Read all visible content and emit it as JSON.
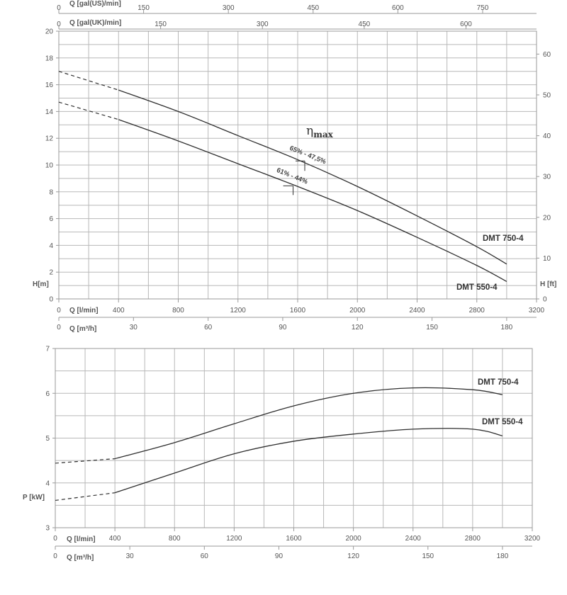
{
  "chart_data": [
    {
      "type": "line",
      "name_hint": "head",
      "series_labels": [
        "DMT 750-4",
        "DMT 550-4"
      ],
      "x_axis_bottom": {
        "label": "Q [l/min]",
        "range": [
          0,
          3200
        ],
        "ticks": [
          0,
          400,
          800,
          1200,
          1600,
          2000,
          2400,
          2800,
          3200
        ],
        "minor_step": 200
      },
      "x_axis_bottom2": {
        "label": "Q [m³/h]",
        "range": [
          0,
          192
        ],
        "ticks": [
          0,
          30,
          60,
          90,
          120,
          150,
          180
        ]
      },
      "x_axis_top1": {
        "label": "Q [gal(US)/min]",
        "range": [
          0,
          845.35
        ],
        "ticks": [
          0,
          150,
          300,
          450,
          600,
          750
        ]
      },
      "x_axis_top2": {
        "label": "Q [gal(UK)/min]",
        "range": [
          0,
          703.9
        ],
        "ticks": [
          0,
          150,
          300,
          450,
          600
        ]
      },
      "y_axis_left": {
        "label": "H[m]",
        "range": [
          0,
          20
        ],
        "ticks": [
          0,
          2,
          4,
          6,
          8,
          10,
          12,
          14,
          16,
          18,
          20
        ]
      },
      "y_axis_right": {
        "label": "H [ft]",
        "range": [
          0,
          65.62
        ],
        "ticks": [
          0,
          10,
          20,
          30,
          40,
          50,
          60
        ]
      },
      "series": [
        {
          "name": "DMT 750-4",
          "dashed_x": [
            0,
            400
          ],
          "dashed_y": [
            17.0,
            15.6
          ],
          "x": [
            400,
            800,
            1200,
            1600,
            2000,
            2400,
            2800,
            3000
          ],
          "y": [
            15.6,
            14.0,
            12.2,
            10.4,
            8.4,
            6.2,
            3.9,
            2.6
          ]
        },
        {
          "name": "DMT 550-4",
          "dashed_x": [
            0,
            400
          ],
          "dashed_y": [
            14.7,
            13.4
          ],
          "x": [
            400,
            800,
            1200,
            1600,
            2000,
            2400,
            2800,
            3000
          ],
          "y": [
            13.4,
            11.8,
            10.1,
            8.4,
            6.6,
            4.6,
            2.5,
            1.3
          ]
        }
      ],
      "annotations": {
        "eta": "η",
        "eta_sub": "max",
        "eff_750": "65% - 47,5%",
        "eff_550": "61% - 44%",
        "eff_750_q": 1600,
        "eff_750_h": 10.2,
        "eff_550_q": 1560,
        "eff_550_h": 8.5
      },
      "grid": true
    },
    {
      "type": "line",
      "name_hint": "power",
      "series_labels": [
        "DMT 750-4",
        "DMT 550-4"
      ],
      "x_axis_bottom": {
        "label": "Q [l/min]",
        "range": [
          0,
          3200
        ],
        "ticks": [
          0,
          400,
          800,
          1200,
          1600,
          2000,
          2400,
          2800,
          3200
        ],
        "minor_step": 200
      },
      "x_axis_bottom2": {
        "label": "Q [m³/h]",
        "range": [
          0,
          192
        ],
        "ticks": [
          0,
          30,
          60,
          90,
          120,
          150,
          180
        ]
      },
      "y_axis_left": {
        "label": "P [kW]",
        "range": [
          3,
          7
        ],
        "ticks": [
          3,
          4,
          5,
          6,
          7
        ]
      },
      "series": [
        {
          "name": "DMT 750-4",
          "dashed_x": [
            0,
            400
          ],
          "dashed_y": [
            4.44,
            4.54
          ],
          "x": [
            400,
            800,
            1200,
            1600,
            2000,
            2400,
            2800,
            3000
          ],
          "y": [
            4.54,
            4.9,
            5.32,
            5.72,
            6.0,
            6.12,
            6.08,
            5.97
          ]
        },
        {
          "name": "DMT 550-4",
          "dashed_x": [
            0,
            400
          ],
          "dashed_y": [
            3.61,
            3.78
          ],
          "x": [
            400,
            800,
            1200,
            1600,
            2000,
            2400,
            2800,
            3000
          ],
          "y": [
            3.78,
            4.22,
            4.65,
            4.93,
            5.09,
            5.2,
            5.2,
            5.05
          ]
        }
      ],
      "grid": true
    }
  ]
}
